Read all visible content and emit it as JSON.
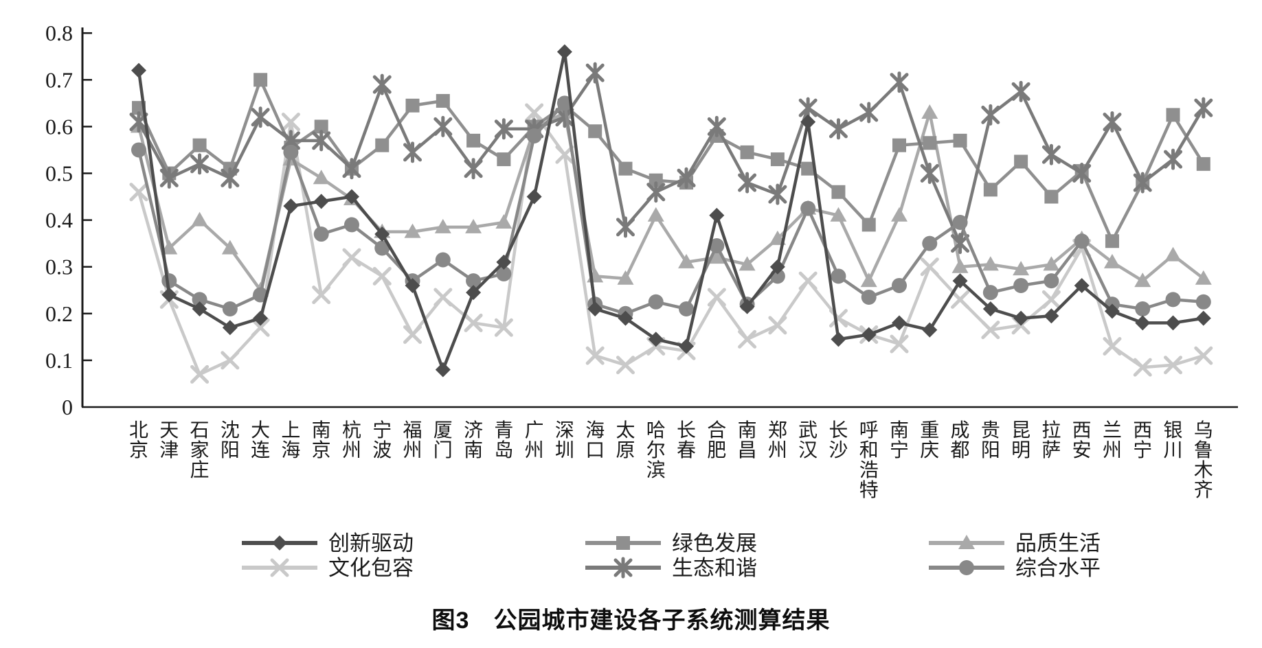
{
  "figure": {
    "caption": "图3　公园城市建设各子系统测算结果"
  },
  "axis": {
    "y_tick_labels": [
      "0",
      "0.1",
      "0.2",
      "0.3",
      "0.4",
      "0.5",
      "0.6",
      "0.7",
      "0.8"
    ]
  },
  "chart_data": {
    "type": "line",
    "title": "公园城市建设各子系统测算结果",
    "xlabel": "",
    "ylabel": "",
    "ylim": [
      0,
      0.8
    ],
    "yticks": [
      0,
      0.1,
      0.2,
      0.3,
      0.4,
      0.5,
      0.6,
      0.7,
      0.8
    ],
    "grid": false,
    "legend_position": "bottom",
    "categories": [
      "北京",
      "天津",
      "石家庄",
      "沈阳",
      "大连",
      "上海",
      "南京",
      "杭州",
      "宁波",
      "福州",
      "厦门",
      "济南",
      "青岛",
      "广州",
      "深圳",
      "海口",
      "太原",
      "哈尔滨",
      "长春",
      "合肥",
      "南昌",
      "郑州",
      "武汉",
      "长沙",
      "呼和浩特",
      "南宁",
      "重庆",
      "成都",
      "贵阳",
      "昆明",
      "拉萨",
      "西安",
      "兰州",
      "西宁",
      "银川",
      "乌鲁木齐"
    ],
    "series": [
      {
        "name": "创新驱动",
        "marker": "diamond",
        "color": "#4d4d4d",
        "values": [
          0.72,
          0.24,
          0.21,
          0.17,
          0.19,
          0.43,
          0.44,
          0.45,
          0.37,
          0.26,
          0.08,
          0.245,
          0.31,
          0.45,
          0.76,
          0.21,
          0.19,
          0.145,
          0.13,
          0.41,
          0.215,
          0.3,
          0.61,
          0.145,
          0.155,
          0.18,
          0.165,
          0.27,
          0.21,
          0.19,
          0.195,
          0.26,
          0.205,
          0.18,
          0.18,
          0.19
        ]
      },
      {
        "name": "绿色发展",
        "marker": "square",
        "color": "#8f8f8f",
        "values": [
          0.64,
          0.5,
          0.56,
          0.51,
          0.7,
          0.555,
          0.6,
          0.51,
          0.56,
          0.645,
          0.655,
          0.57,
          0.53,
          0.6,
          0.645,
          0.59,
          0.51,
          0.485,
          0.48,
          0.58,
          0.545,
          0.53,
          0.51,
          0.46,
          0.39,
          0.56,
          0.565,
          0.57,
          0.465,
          0.525,
          0.45,
          0.505,
          0.355,
          0.48,
          0.625,
          0.52
        ]
      },
      {
        "name": "品质生活",
        "marker": "triangle",
        "color": "#a9a9a9",
        "values": [
          0.6,
          0.34,
          0.4,
          0.34,
          0.25,
          0.53,
          0.49,
          0.445,
          0.375,
          0.375,
          0.385,
          0.385,
          0.395,
          0.595,
          0.63,
          0.28,
          0.275,
          0.41,
          0.31,
          0.32,
          0.305,
          0.36,
          0.425,
          0.41,
          0.27,
          0.41,
          0.63,
          0.3,
          0.305,
          0.295,
          0.305,
          0.36,
          0.31,
          0.27,
          0.325,
          0.275
        ]
      },
      {
        "name": "文化包容",
        "marker": "x",
        "color": "#c9c9c9",
        "values": [
          0.46,
          0.23,
          0.07,
          0.1,
          0.17,
          0.61,
          0.24,
          0.32,
          0.28,
          0.155,
          0.235,
          0.18,
          0.17,
          0.63,
          0.54,
          0.11,
          0.09,
          0.13,
          0.12,
          0.235,
          0.145,
          0.175,
          0.27,
          0.19,
          0.155,
          0.135,
          0.3,
          0.23,
          0.165,
          0.175,
          0.23,
          0.34,
          0.13,
          0.085,
          0.09,
          0.11
        ]
      },
      {
        "name": "生态和谐",
        "marker": "asterisk",
        "color": "#7a7a7a",
        "values": [
          0.61,
          0.49,
          0.52,
          0.49,
          0.62,
          0.57,
          0.57,
          0.51,
          0.69,
          0.545,
          0.6,
          0.51,
          0.595,
          0.595,
          0.62,
          0.715,
          0.385,
          0.46,
          0.49,
          0.6,
          0.48,
          0.455,
          0.64,
          0.595,
          0.63,
          0.695,
          0.5,
          0.35,
          0.625,
          0.675,
          0.54,
          0.5,
          0.61,
          0.48,
          0.53,
          0.64
        ]
      },
      {
        "name": "综合水平",
        "marker": "circle",
        "color": "#888888",
        "values": [
          0.55,
          0.27,
          0.23,
          0.21,
          0.24,
          0.545,
          0.37,
          0.39,
          0.34,
          0.27,
          0.315,
          0.27,
          0.285,
          0.58,
          0.65,
          0.22,
          0.2,
          0.225,
          0.21,
          0.345,
          0.22,
          0.28,
          0.425,
          0.28,
          0.235,
          0.26,
          0.35,
          0.395,
          0.245,
          0.26,
          0.27,
          0.355,
          0.22,
          0.21,
          0.23,
          0.225
        ]
      }
    ]
  }
}
